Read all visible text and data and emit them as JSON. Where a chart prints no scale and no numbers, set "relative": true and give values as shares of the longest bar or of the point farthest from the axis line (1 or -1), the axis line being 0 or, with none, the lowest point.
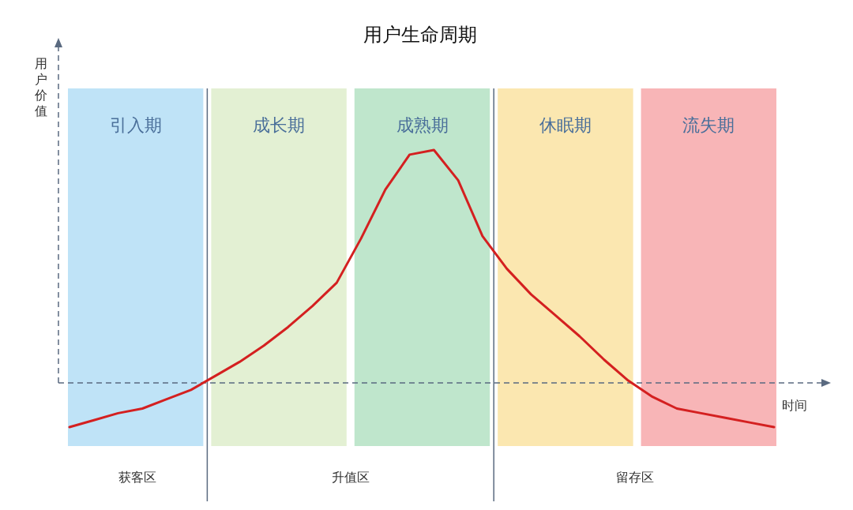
{
  "chart_data": {
    "type": "line",
    "relative": true,
    "title": "用户生命周期",
    "xlabel": "时间",
    "ylabel": "用户价值",
    "color": "#d42020",
    "categories": [
      null,
      null,
      null,
      null,
      null,
      null,
      null,
      null,
      null,
      null,
      null,
      null,
      null,
      null,
      null,
      null,
      null,
      null,
      null,
      null,
      null,
      null,
      null,
      null,
      null,
      null,
      null,
      null,
      null,
      null
    ],
    "values": [
      -0.19,
      -0.16,
      -0.13,
      -0.11,
      -0.07,
      -0.03,
      0.03,
      0.09,
      0.16,
      0.24,
      0.33,
      0.43,
      0.62,
      0.83,
      0.98,
      1,
      0.87,
      0.63,
      0.49,
      0.38,
      0.29,
      0.2,
      0.1,
      0.01,
      -0.06,
      -0.11,
      -0.13,
      -0.15,
      -0.17,
      -0.19
    ],
    "ref_lines": [
      {
        "axis": "y",
        "value": 0,
        "color": "#5a6a80",
        "line_style": "dashed"
      }
    ],
    "annotations": [
      "引入期",
      "成长期",
      "成熟期",
      "休眠期",
      "流失期",
      "获客区",
      "升值区",
      "留存区"
    ]
  }
}
